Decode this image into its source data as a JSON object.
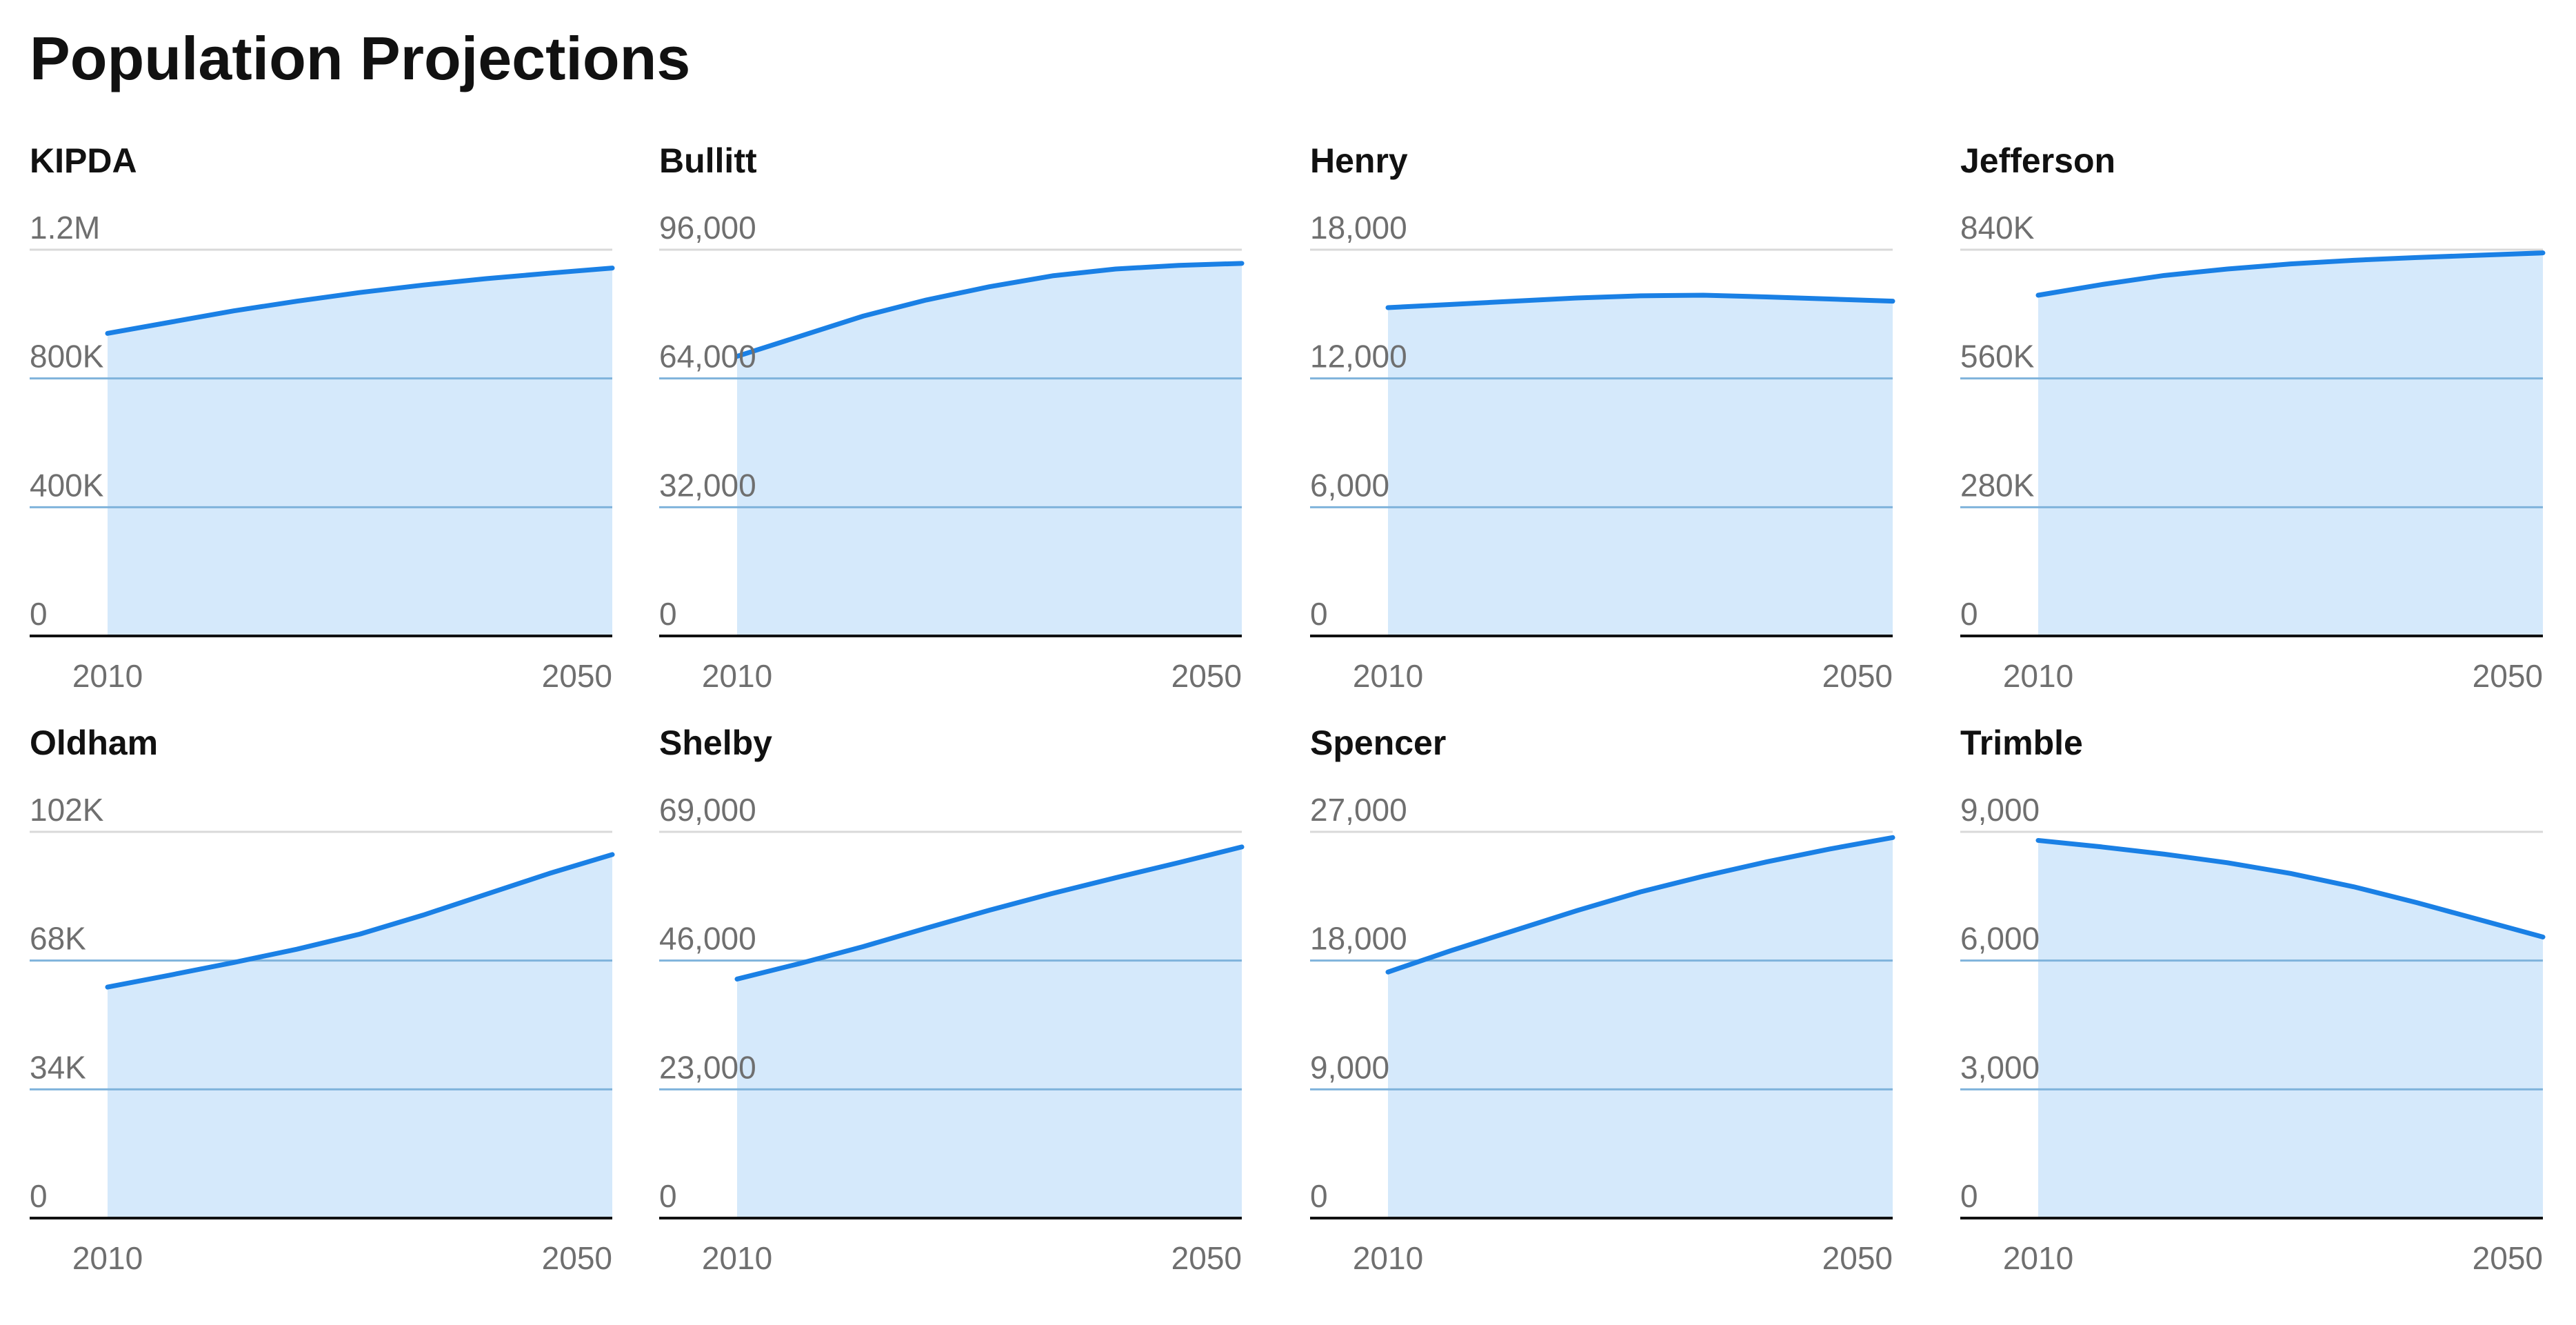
{
  "title": "Population Projections",
  "colors": {
    "line": "#1a80e5",
    "fill": "#d5e9fb",
    "grid_top": "#d9d9d9",
    "grid_inner": "#7fb3db",
    "axis": "#111111"
  },
  "chart_data": [
    {
      "type": "area",
      "title": "KIPDA",
      "x": [
        2010,
        2015,
        2020,
        2025,
        2030,
        2035,
        2040,
        2045,
        2050
      ],
      "values": [
        940000,
        975000,
        1010000,
        1040000,
        1067000,
        1090000,
        1110000,
        1127000,
        1143000
      ],
      "ylim": [
        0,
        1200000
      ],
      "yticks": [
        "0",
        "400K",
        "800K",
        "1.2M"
      ],
      "xticks": [
        "2010",
        "2050"
      ]
    },
    {
      "type": "area",
      "title": "Bullitt",
      "x": [
        2010,
        2015,
        2020,
        2025,
        2030,
        2035,
        2040,
        2045,
        2050
      ],
      "values": [
        69500,
        74500,
        79500,
        83500,
        86800,
        89500,
        91200,
        92100,
        92600
      ],
      "ylim": [
        0,
        96000
      ],
      "yticks": [
        "0",
        "32,000",
        "64,000",
        "96,000"
      ],
      "xticks": [
        "2010",
        "2050"
      ]
    },
    {
      "type": "area",
      "title": "Henry",
      "x": [
        2010,
        2015,
        2020,
        2025,
        2030,
        2035,
        2040,
        2045,
        2050
      ],
      "values": [
        15300,
        15450,
        15600,
        15750,
        15850,
        15880,
        15800,
        15700,
        15600
      ],
      "ylim": [
        0,
        18000
      ],
      "yticks": [
        "0",
        "6,000",
        "12,000",
        "18,000"
      ],
      "xticks": [
        "2010",
        "2050"
      ]
    },
    {
      "type": "area",
      "title": "Jefferson",
      "x": [
        2010,
        2015,
        2020,
        2025,
        2030,
        2035,
        2040,
        2045,
        2050
      ],
      "values": [
        741000,
        764000,
        784000,
        798000,
        809000,
        817000,
        823000,
        828000,
        833000
      ],
      "ylim": [
        0,
        840000
      ],
      "yticks": [
        "0",
        "280K",
        "560K",
        "840K"
      ],
      "xticks": [
        "2010",
        "2050"
      ]
    },
    {
      "type": "area",
      "title": "Oldham",
      "x": [
        2010,
        2015,
        2020,
        2025,
        2030,
        2035,
        2040,
        2045,
        2050
      ],
      "values": [
        61000,
        64200,
        67500,
        71000,
        75000,
        80000,
        85500,
        91000,
        96000
      ],
      "ylim": [
        0,
        102000
      ],
      "yticks": [
        "0",
        "34K",
        "68K",
        "102K"
      ],
      "xticks": [
        "2010",
        "2050"
      ]
    },
    {
      "type": "area",
      "title": "Shelby",
      "x": [
        2010,
        2015,
        2020,
        2025,
        2030,
        2035,
        2040,
        2045,
        2050
      ],
      "values": [
        42700,
        45500,
        48500,
        51800,
        55000,
        58000,
        60800,
        63500,
        66300
      ],
      "ylim": [
        0,
        69000
      ],
      "yticks": [
        "0",
        "23,000",
        "46,000",
        "69,000"
      ],
      "xticks": [
        "2010",
        "2050"
      ]
    },
    {
      "type": "area",
      "title": "Spencer",
      "x": [
        2010,
        2015,
        2020,
        2025,
        2030,
        2035,
        2040,
        2045,
        2050
      ],
      "values": [
        17200,
        18700,
        20100,
        21500,
        22800,
        23900,
        24900,
        25800,
        26600
      ],
      "ylim": [
        0,
        27000
      ],
      "yticks": [
        "0",
        "9,000",
        "18,000",
        "27,000"
      ],
      "xticks": [
        "2010",
        "2050"
      ]
    },
    {
      "type": "area",
      "title": "Trimble",
      "x": [
        2010,
        2015,
        2020,
        2025,
        2030,
        2035,
        2040,
        2045,
        2050
      ],
      "values": [
        8800,
        8650,
        8480,
        8280,
        8030,
        7720,
        7350,
        6950,
        6550
      ],
      "ylim": [
        0,
        9000
      ],
      "yticks": [
        "0",
        "3,000",
        "6,000",
        "9,000"
      ],
      "xticks": [
        "2010",
        "2050"
      ]
    }
  ]
}
